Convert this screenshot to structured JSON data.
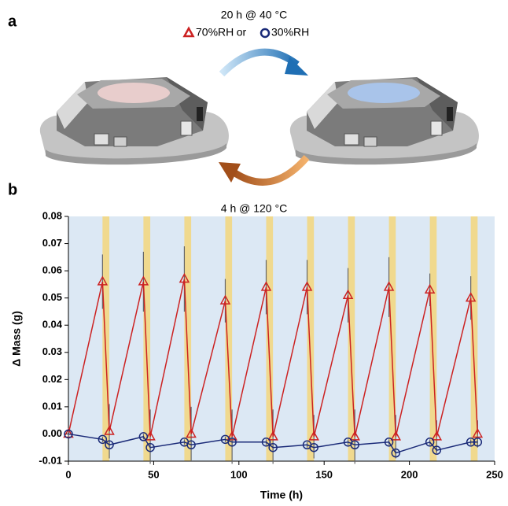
{
  "panels": [
    "a",
    "b"
  ],
  "diagram": {
    "heat_step_top": "20 h @ 40 °C",
    "connector": "or",
    "heat_step_bottom": "4 h @ 120 °C"
  },
  "chart_data": {
    "type": "line",
    "xlabel": "Time (h)",
    "ylabel": "Δ Mass (g)",
    "xlim": [
      0,
      250
    ],
    "ylim": [
      -0.01,
      0.08
    ],
    "xticks": [
      0,
      50,
      100,
      150,
      200,
      250
    ],
    "yticks": [
      -0.01,
      {
        "value": 0,
        "label": "0.00"
      },
      0.01,
      0.02,
      0.03,
      0.04,
      0.05,
      0.06,
      0.07,
      0.08
    ],
    "x": [
      0,
      20,
      24,
      44,
      48,
      68,
      72,
      92,
      96,
      116,
      120,
      140,
      144,
      164,
      168,
      188,
      192,
      212,
      216,
      236,
      240
    ],
    "background": "#dce8f4",
    "band_color": "#f0d98e",
    "error_color": "#666666",
    "series": [
      {
        "name": "70%RH",
        "color": "#cc2222",
        "marker": "triangle",
        "values": [
          0,
          0.056,
          0.001,
          0.056,
          -0.001,
          0.057,
          0,
          0.049,
          -0.001,
          0.054,
          -0.001,
          0.054,
          -0.001,
          0.051,
          -0.001,
          0.054,
          -0.001,
          0.053,
          -0.001,
          0.05,
          0
        ],
        "errors": [
          0.001,
          0.01,
          0.01,
          0.011,
          0.01,
          0.012,
          0.01,
          0.008,
          0.01,
          0.01,
          0.01,
          0.01,
          0.008,
          0.01,
          0.01,
          0.011,
          0.008,
          0.006,
          0.006,
          0.008,
          0.005
        ]
      },
      {
        "name": "30%RH",
        "color": "#1a2a78",
        "marker": "circle",
        "values": [
          0,
          -0.002,
          -0.004,
          -0.001,
          -0.005,
          -0.003,
          -0.004,
          -0.002,
          -0.003,
          -0.003,
          -0.005,
          -0.004,
          -0.005,
          -0.003,
          -0.004,
          -0.003,
          -0.007,
          -0.003,
          -0.006,
          -0.003,
          -0.003
        ],
        "errors": [
          0.001,
          0.001,
          0.001,
          0.001,
          0.001,
          0.001,
          0.001,
          0.001,
          0.001,
          0.001,
          0.001,
          0.001,
          0.001,
          0.001,
          0.001,
          0.001,
          0.001,
          0.001,
          0.001,
          0.001,
          0.001
        ]
      }
    ]
  }
}
